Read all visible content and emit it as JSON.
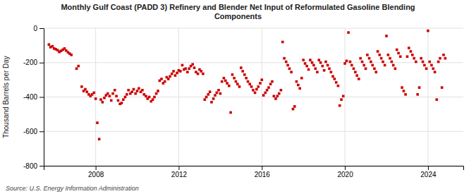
{
  "chart_data": {
    "type": "scatter",
    "title": "Monthly Gulf Coast (PADD 3) Refinery and Blender Net Input of Reformulated Gasoline Blending\nComponents",
    "ylabel": "Thousand Barrels per Day",
    "source": "Source: U.S. Energy Information Administration",
    "color": "#cc0000",
    "marker": "square",
    "grid": true,
    "xlim": [
      2005.5,
      2025.7
    ],
    "xticks": [
      2008,
      2012,
      2016,
      2020,
      2024
    ],
    "ylim": [
      -800,
      0
    ],
    "yticks": [
      0,
      -200,
      -400,
      -600,
      -800
    ],
    "x": [
      2005.75,
      2005.83,
      2005.92,
      2006.0,
      2006.08,
      2006.17,
      2006.25,
      2006.33,
      2006.42,
      2006.5,
      2006.58,
      2006.67,
      2006.75,
      2006.83,
      2007.08,
      2007.17,
      2007.33,
      2007.42,
      2007.5,
      2007.58,
      2007.67,
      2007.75,
      2007.83,
      2007.92,
      2008.0,
      2008.08,
      2008.17,
      2008.25,
      2008.33,
      2008.42,
      2008.5,
      2008.58,
      2008.67,
      2008.75,
      2008.83,
      2008.92,
      2009.0,
      2009.08,
      2009.17,
      2009.25,
      2009.33,
      2009.42,
      2009.5,
      2009.58,
      2009.67,
      2009.75,
      2009.83,
      2009.92,
      2010.0,
      2010.08,
      2010.17,
      2010.25,
      2010.33,
      2010.42,
      2010.5,
      2010.58,
      2010.67,
      2010.75,
      2010.83,
      2010.92,
      2011.0,
      2011.08,
      2011.17,
      2011.25,
      2011.33,
      2011.42,
      2011.5,
      2011.58,
      2011.67,
      2011.75,
      2011.83,
      2011.92,
      2012.0,
      2012.08,
      2012.17,
      2012.25,
      2012.33,
      2012.42,
      2012.5,
      2012.58,
      2012.67,
      2012.75,
      2012.83,
      2012.92,
      2013.0,
      2013.08,
      2013.17,
      2013.25,
      2013.33,
      2013.42,
      2013.5,
      2013.58,
      2013.67,
      2013.75,
      2013.83,
      2013.92,
      2014.0,
      2014.08,
      2014.17,
      2014.25,
      2014.33,
      2014.42,
      2014.5,
      2014.58,
      2014.67,
      2014.75,
      2014.83,
      2014.92,
      2015.0,
      2015.08,
      2015.17,
      2015.25,
      2015.33,
      2015.42,
      2015.5,
      2015.58,
      2015.67,
      2015.75,
      2015.83,
      2015.92,
      2016.0,
      2016.08,
      2016.17,
      2016.25,
      2016.33,
      2016.42,
      2016.5,
      2016.58,
      2016.67,
      2016.75,
      2016.83,
      2016.92,
      2017.0,
      2017.08,
      2017.17,
      2017.25,
      2017.33,
      2017.42,
      2017.5,
      2017.58,
      2017.67,
      2017.75,
      2017.83,
      2017.92,
      2018.0,
      2018.08,
      2018.17,
      2018.25,
      2018.33,
      2018.42,
      2018.5,
      2018.58,
      2018.67,
      2018.75,
      2018.83,
      2018.92,
      2019.0,
      2019.08,
      2019.17,
      2019.25,
      2019.33,
      2019.42,
      2019.5,
      2019.58,
      2019.67,
      2019.75,
      2019.83,
      2019.92,
      2020.0,
      2020.08,
      2020.17,
      2020.25,
      2020.33,
      2020.42,
      2020.5,
      2020.58,
      2020.67,
      2020.75,
      2020.83,
      2020.92,
      2021.0,
      2021.08,
      2021.17,
      2021.25,
      2021.33,
      2021.42,
      2021.5,
      2021.58,
      2021.67,
      2021.75,
      2021.83,
      2021.92,
      2022.0,
      2022.08,
      2022.17,
      2022.25,
      2022.33,
      2022.42,
      2022.5,
      2022.58,
      2022.67,
      2022.75,
      2022.83,
      2022.92,
      2023.0,
      2023.08,
      2023.17,
      2023.25,
      2023.33,
      2023.42,
      2023.5,
      2023.58,
      2023.67,
      2023.75,
      2023.83,
      2023.92,
      2024.0,
      2024.08,
      2024.17,
      2024.25,
      2024.33,
      2024.42,
      2024.5,
      2024.58,
      2024.67,
      2024.75,
      2024.83
    ],
    "values": [
      -95,
      -110,
      -105,
      -118,
      -122,
      -128,
      -138,
      -132,
      -125,
      -118,
      -130,
      -140,
      -148,
      -155,
      -235,
      -220,
      -340,
      -365,
      -355,
      -370,
      -385,
      -395,
      -385,
      -375,
      -410,
      -550,
      -645,
      -415,
      -430,
      -405,
      -390,
      -380,
      -395,
      -420,
      -380,
      -360,
      -395,
      -420,
      -440,
      -435,
      -415,
      -400,
      -385,
      -360,
      -380,
      -370,
      -355,
      -380,
      -365,
      -350,
      -370,
      -360,
      -385,
      -395,
      -410,
      -400,
      -425,
      -415,
      -400,
      -380,
      -365,
      -305,
      -295,
      -320,
      -310,
      -285,
      -295,
      -280,
      -265,
      -250,
      -275,
      -260,
      -245,
      -250,
      -215,
      -240,
      -235,
      -255,
      -235,
      -220,
      -210,
      -230,
      -255,
      -265,
      -240,
      -250,
      -265,
      -415,
      -400,
      -385,
      -370,
      -430,
      -410,
      -390,
      -375,
      -360,
      -380,
      -310,
      -290,
      -305,
      -320,
      -335,
      -490,
      -270,
      -290,
      -310,
      -325,
      -340,
      -230,
      -250,
      -270,
      -290,
      -310,
      -325,
      -340,
      -360,
      -375,
      -355,
      -340,
      -320,
      -300,
      -390,
      -375,
      -360,
      -345,
      -325,
      -310,
      -395,
      -410,
      -395,
      -380,
      -360,
      -80,
      -175,
      -195,
      -215,
      -235,
      -255,
      -470,
      -455,
      -310,
      -330,
      -350,
      -290,
      -185,
      -205,
      -220,
      -240,
      -185,
      -200,
      -215,
      -235,
      -255,
      -185,
      -200,
      -220,
      -245,
      -195,
      -215,
      -235,
      -255,
      -280,
      -295,
      -315,
      -335,
      -450,
      -415,
      -395,
      -205,
      -190,
      -25,
      -195,
      -215,
      -235,
      -255,
      -275,
      -295,
      -175,
      -195,
      -215,
      -235,
      -155,
      -175,
      -195,
      -215,
      -235,
      -255,
      -135,
      -155,
      -175,
      -195,
      -215,
      -45,
      -155,
      -175,
      -195,
      -215,
      -235,
      -125,
      -145,
      -165,
      -345,
      -365,
      -385,
      -165,
      -115,
      -135,
      -155,
      -175,
      -195,
      -385,
      -345,
      -175,
      -195,
      -215,
      -235,
      -15,
      -195,
      -215,
      -235,
      -255,
      -415,
      -195,
      -175,
      -345,
      -155,
      -175
    ]
  }
}
